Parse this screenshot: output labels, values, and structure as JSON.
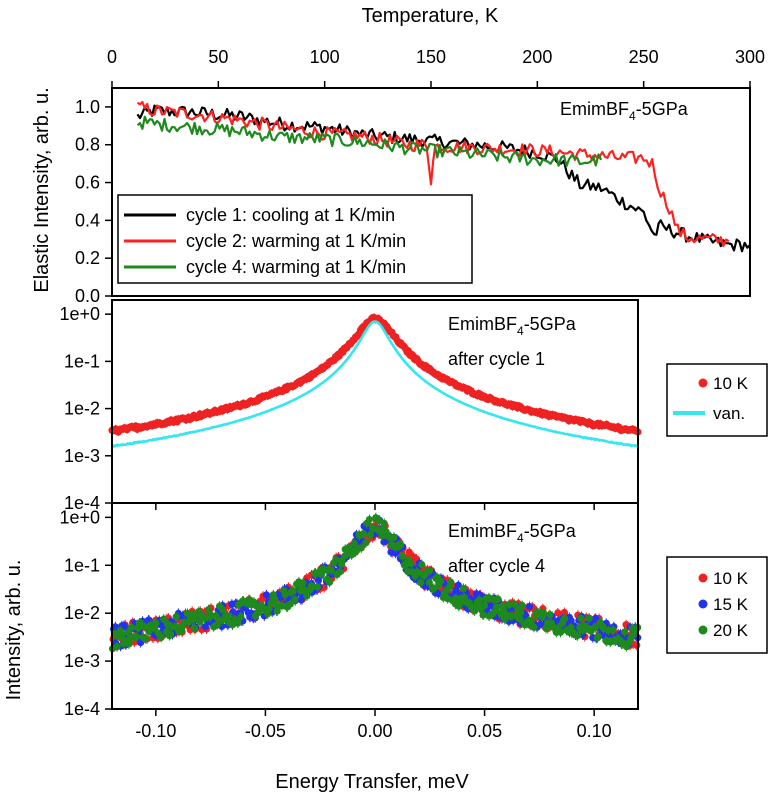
{
  "chart_data": [
    {
      "type": "line",
      "panel": "top",
      "title": "",
      "xlabel": "Temperature, K",
      "ylabel": "Elastic Intensity, arb. u.",
      "xlim": [
        0,
        300
      ],
      "ylim": [
        0.0,
        1.1
      ],
      "xticks": [
        0,
        50,
        100,
        150,
        200,
        250,
        300
      ],
      "yticks": [
        "0.0",
        "0.2",
        "0.4",
        "0.6",
        "0.8",
        "1.0"
      ],
      "annotation": {
        "text": "EmimBF",
        "sub": "4",
        "suffix": "-5GPa"
      },
      "legend_position": "bottom-left",
      "series": [
        {
          "name": "cycle 1: cooling at 1 K/min",
          "color": "#000000",
          "x": [
            12,
            20,
            40,
            60,
            80,
            100,
            120,
            140,
            160,
            180,
            200,
            210,
            215,
            220,
            230,
            240,
            250,
            255,
            258,
            262,
            270,
            280,
            290,
            300
          ],
          "y": [
            0.95,
            0.98,
            0.97,
            0.95,
            0.91,
            0.89,
            0.85,
            0.83,
            0.81,
            0.79,
            0.76,
            0.72,
            0.65,
            0.59,
            0.57,
            0.5,
            0.44,
            0.32,
            0.37,
            0.35,
            0.32,
            0.29,
            0.27,
            0.27
          ]
        },
        {
          "name": "cycle 2: warming at 1 K/min",
          "color": "#ff2020",
          "x": [
            12,
            20,
            40,
            60,
            80,
            100,
            120,
            140,
            148,
            150,
            152,
            160,
            180,
            200,
            220,
            240,
            250,
            254,
            258,
            262,
            266,
            270,
            280,
            290
          ],
          "y": [
            1.0,
            0.98,
            0.96,
            0.93,
            0.89,
            0.86,
            0.84,
            0.8,
            0.8,
            0.62,
            0.79,
            0.79,
            0.78,
            0.77,
            0.75,
            0.73,
            0.73,
            0.7,
            0.55,
            0.47,
            0.35,
            0.31,
            0.3,
            0.29
          ]
        },
        {
          "name": "cycle 4: warming at 1 K/min",
          "color": "#1e8a1e",
          "x": [
            12,
            20,
            40,
            60,
            80,
            100,
            120,
            140,
            160,
            180,
            200,
            210,
            220,
            230
          ],
          "y": [
            0.92,
            0.91,
            0.89,
            0.87,
            0.84,
            0.83,
            0.81,
            0.78,
            0.76,
            0.74,
            0.72,
            0.72,
            0.71,
            0.72
          ]
        }
      ]
    },
    {
      "type": "scatter",
      "panel": "middle",
      "xlim": [
        -0.12,
        0.12
      ],
      "ylim_log10": [
        -4,
        0.3
      ],
      "yticks": [
        "1e+0",
        "1e-1",
        "1e-2",
        "1e-3",
        "1e-4"
      ],
      "annotation": {
        "text": "EmimBF",
        "sub": "4",
        "suffix": "-5GPa",
        "line2": "after cycle 1"
      },
      "legend_position": "outside-right",
      "series": [
        {
          "name": "10 K",
          "color": "#ee2222",
          "marker": "circle",
          "peak": 0.8,
          "width": 0.0075,
          "background": 0.00018
        },
        {
          "name": "van.",
          "color": "#33e6f0",
          "marker": "line",
          "peak": 0.7,
          "width": 0.0055,
          "background": 0.000125
        }
      ]
    },
    {
      "type": "scatter",
      "panel": "bottom",
      "xlabel": "Energy Transfer, meV",
      "ylabel": "Intensity, arb. u.",
      "xlim": [
        -0.12,
        0.12
      ],
      "ylim_log10": [
        -4,
        0.3
      ],
      "xticks": [
        "-0.10",
        "-0.05",
        "0.00",
        "0.05",
        "0.10"
      ],
      "xtick_values": [
        -0.1,
        -0.05,
        0.0,
        0.05,
        0.1
      ],
      "yticks": [
        "1e+0",
        "1e-1",
        "1e-2",
        "1e-3",
        "1e-4"
      ],
      "annotation": {
        "text": "EmimBF",
        "sub": "4",
        "suffix": "-5GPa",
        "line2": "after cycle 4"
      },
      "legend_position": "outside-right",
      "series": [
        {
          "name": "10 K",
          "color": "#ee2222",
          "peak": 0.6,
          "width": 0.0075,
          "side_peak_center": 0.078,
          "side_peak_height": 0.0016
        },
        {
          "name": "15 K",
          "color": "#2233ee",
          "peak": 0.6,
          "width": 0.0075,
          "side_peak_center": 0.076,
          "side_peak_height": 0.0015
        },
        {
          "name": "20 K",
          "color": "#1e8a1e",
          "peak": 0.6,
          "width": 0.0075,
          "side_peak_center": 0.074,
          "side_peak_height": 0.0013
        }
      ]
    }
  ]
}
